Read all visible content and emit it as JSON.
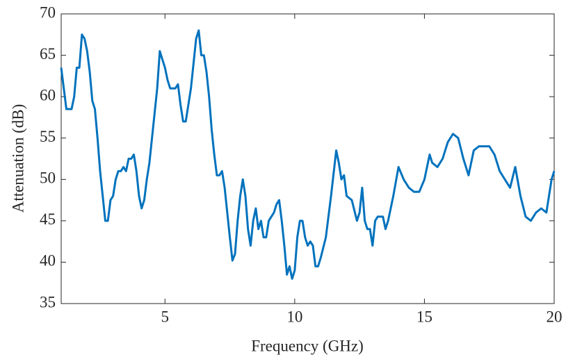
{
  "chart_data": {
    "type": "line",
    "x_label": "Frequency (GHz)",
    "y_label": "Attenuation (dB)",
    "xlim": [
      1,
      20
    ],
    "xticks": [
      5,
      10,
      15,
      20
    ],
    "ylim": [
      35,
      70
    ],
    "yticks": [
      35,
      40,
      45,
      50,
      55,
      60,
      65,
      70
    ],
    "series": [
      {
        "color": "#0072bd",
        "x": [
          1.0,
          1.1,
          1.2,
          1.3,
          1.4,
          1.5,
          1.6,
          1.7,
          1.8,
          1.9,
          2.0,
          2.1,
          2.2,
          2.3,
          2.4,
          2.5,
          2.6,
          2.7,
          2.8,
          2.9,
          3.0,
          3.1,
          3.2,
          3.3,
          3.4,
          3.5,
          3.6,
          3.7,
          3.8,
          3.9,
          4.0,
          4.1,
          4.2,
          4.3,
          4.4,
          4.5,
          4.6,
          4.7,
          4.8,
          4.9,
          5.0,
          5.1,
          5.2,
          5.3,
          5.4,
          5.5,
          5.6,
          5.7,
          5.8,
          5.9,
          6.0,
          6.1,
          6.2,
          6.3,
          6.4,
          6.5,
          6.6,
          6.7,
          6.8,
          6.9,
          7.0,
          7.1,
          7.2,
          7.3,
          7.4,
          7.5,
          7.6,
          7.7,
          7.8,
          7.9,
          8.0,
          8.1,
          8.2,
          8.3,
          8.4,
          8.5,
          8.6,
          8.7,
          8.8,
          8.9,
          9.0,
          9.1,
          9.2,
          9.3,
          9.4,
          9.5,
          9.6,
          9.7,
          9.8,
          9.9,
          10.0,
          10.1,
          10.2,
          10.3,
          10.4,
          10.5,
          10.6,
          10.7,
          10.8,
          10.9,
          11.0,
          11.2,
          11.4,
          11.6,
          11.7,
          11.8,
          11.9,
          12.0,
          12.2,
          12.4,
          12.5,
          12.6,
          12.7,
          12.8,
          12.9,
          13.0,
          13.1,
          13.2,
          13.4,
          13.5,
          13.6,
          13.8,
          14.0,
          14.2,
          14.4,
          14.6,
          14.8,
          15.0,
          15.2,
          15.3,
          15.5,
          15.7,
          15.9,
          16.1,
          16.3,
          16.5,
          16.7,
          16.9,
          17.1,
          17.3,
          17.5,
          17.7,
          17.9,
          18.1,
          18.3,
          18.5,
          18.7,
          18.9,
          19.1,
          19.3,
          19.5,
          19.7,
          19.9,
          20.0
        ],
        "values": [
          63.5,
          61,
          58.5,
          58.5,
          58.5,
          60,
          63.5,
          63.5,
          67.5,
          67,
          65.5,
          63,
          59.5,
          58.5,
          55,
          51,
          48,
          45,
          45,
          47.5,
          48,
          50,
          51,
          51,
          51.5,
          51,
          52.5,
          52.5,
          53,
          51,
          48,
          46.5,
          47.5,
          50,
          52,
          55,
          58,
          61,
          65.5,
          64.5,
          63.5,
          62,
          61,
          61,
          61,
          61.5,
          59,
          57,
          57,
          59,
          61,
          64,
          67,
          68,
          65,
          65,
          63,
          60,
          56,
          53,
          50.5,
          50.5,
          51,
          49,
          46,
          43,
          40.2,
          41,
          45,
          48,
          50,
          48,
          44,
          42,
          45,
          46.5,
          44,
          45,
          43,
          43,
          45,
          45.5,
          46,
          47,
          47.5,
          45,
          42,
          38.5,
          39.5,
          38,
          39,
          43,
          45,
          45,
          43,
          42,
          42.5,
          42,
          39.5,
          39.5,
          40.5,
          43,
          48,
          53.5,
          52,
          50,
          50.5,
          48,
          47.5,
          45,
          46,
          49,
          45,
          44,
          44,
          42,
          45,
          45.5,
          45.5,
          44,
          45,
          48,
          51.5,
          50,
          49,
          48.5,
          48.5,
          50,
          53,
          52,
          51.5,
          52.5,
          54.5,
          55.5,
          55,
          52.5,
          50.5,
          53.5,
          54,
          54,
          54,
          53,
          51,
          50,
          49,
          51.5,
          48,
          45.5,
          45,
          46,
          46.5,
          46,
          50,
          51
        ]
      }
    ]
  }
}
